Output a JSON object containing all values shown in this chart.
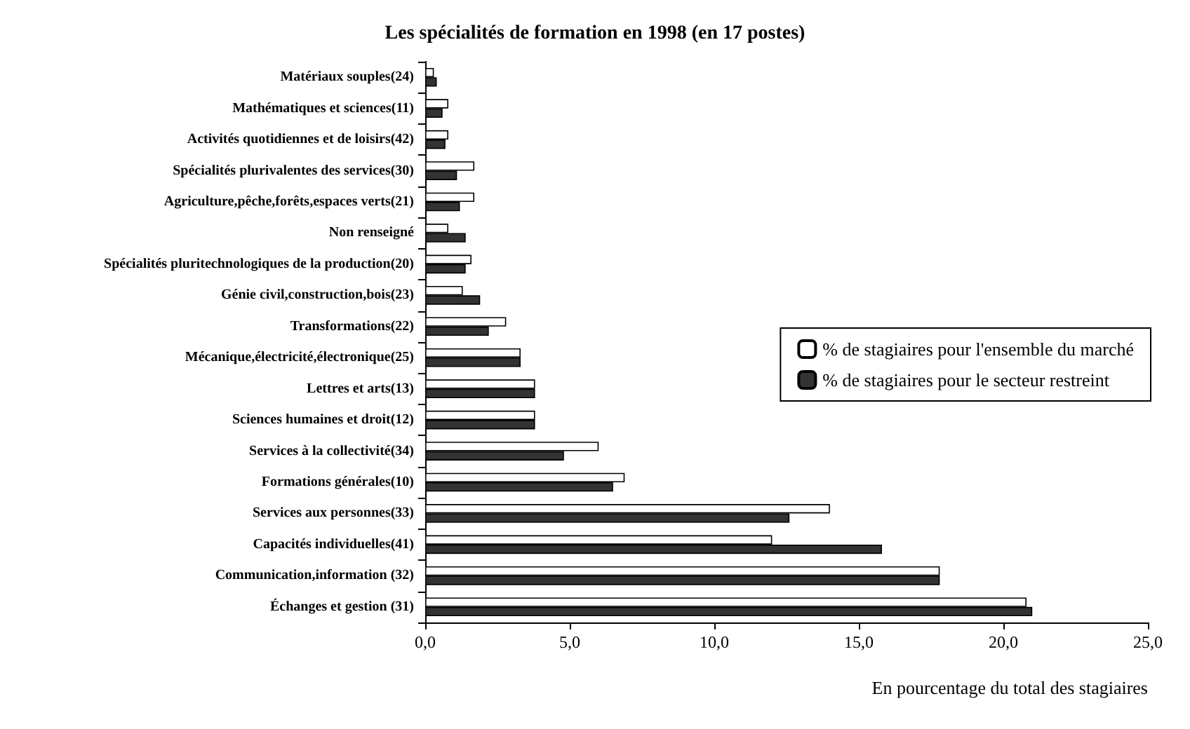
{
  "chart_data": {
    "type": "bar",
    "orientation": "horizontal",
    "title": "Les spécialités de formation en 1998 (en 17 postes)",
    "xlabel": "En pourcentage du total des stagiaires",
    "categories": [
      "Matériaux souples(24)",
      "Mathématiques et sciences(11)",
      "Activités quotidiennes et de loisirs(42)",
      "Spécialités plurivalentes des services(30)",
      "Agriculture,pêche,forêts,espaces verts(21)",
      "Non renseigné",
      "Spécialités pluritechnologiques de la production(20)",
      "Génie civil,construction,bois(23)",
      "Transformations(22)",
      "Mécanique,électricité,électronique(25)",
      "Lettres et arts(13)",
      "Sciences humaines et droit(12)",
      "Services à la collectivité(34)",
      "Formations générales(10)",
      "Services aux personnes(33)",
      "Capacités individuelles(41)",
      "Communication,information (32)",
      "Échanges et gestion (31)"
    ],
    "series": [
      {
        "name": "% de stagiaires pour l'ensemble du marché",
        "color": "#ffffff",
        "values": [
          0.3,
          0.8,
          0.8,
          1.7,
          1.7,
          0.8,
          1.6,
          1.3,
          2.8,
          3.3,
          3.8,
          3.8,
          6.0,
          6.9,
          14.0,
          12.0,
          17.8,
          20.8
        ]
      },
      {
        "name": "% de stagiaires pour le secteur restreint",
        "color": "#333333",
        "values": [
          0.4,
          0.6,
          0.7,
          1.1,
          1.2,
          1.4,
          1.4,
          1.9,
          2.2,
          3.3,
          3.8,
          3.8,
          4.8,
          6.5,
          12.6,
          15.8,
          17.8,
          21.0
        ]
      }
    ],
    "xlim": [
      0,
      25
    ],
    "xticks": [
      {
        "value": 0,
        "label": "0,0"
      },
      {
        "value": 5,
        "label": "5,0"
      },
      {
        "value": 10,
        "label": "10,0"
      },
      {
        "value": 15,
        "label": "15,0"
      },
      {
        "value": 20,
        "label": "20,0"
      },
      {
        "value": 25,
        "label": "25,0"
      }
    ],
    "grid": false,
    "legend": "right"
  }
}
